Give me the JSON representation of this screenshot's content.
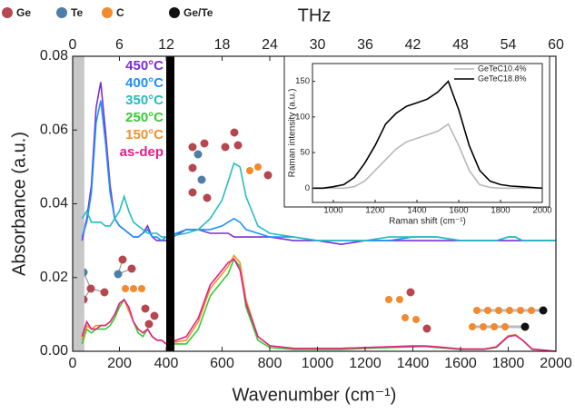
{
  "chart_data": [
    {
      "type": "line",
      "xlabel": "Wavenumber (cm⁻¹)",
      "ylabel": "Absorbance (a.u.)",
      "x2label": "THz",
      "x": [
        40,
        60,
        80,
        100,
        120,
        140,
        160,
        180,
        200,
        220,
        240,
        260,
        280,
        300,
        320,
        340,
        360,
        380,
        400,
        450,
        500,
        550,
        600,
        625,
        650,
        675,
        700,
        750,
        800,
        900,
        1000,
        1100,
        1200,
        1300,
        1400,
        1450,
        1500,
        1600,
        1700,
        1750,
        1800,
        1830,
        1860,
        1900,
        2000
      ],
      "series": [
        {
          "name": "450°C",
          "color": "#7b2fd6",
          "values": [
            0.03,
            0.036,
            0.045,
            0.066,
            0.073,
            0.06,
            0.045,
            0.036,
            0.034,
            0.033,
            0.032,
            0.031,
            0.031,
            0.032,
            0.034,
            0.031,
            0.03,
            0.03,
            0.03,
            0.033,
            0.033,
            0.032,
            0.032,
            0.032,
            0.031,
            0.031,
            0.031,
            0.031,
            0.031,
            0.03,
            0.03,
            0.029,
            0.03,
            0.03,
            0.03,
            0.03,
            0.03,
            0.03,
            0.03,
            0.03,
            0.03,
            0.03,
            0.03,
            0.03,
            0.03
          ]
        },
        {
          "name": "400°C",
          "color": "#1e90ff",
          "values": [
            0.031,
            0.035,
            0.043,
            0.062,
            0.068,
            0.057,
            0.043,
            0.036,
            0.034,
            0.033,
            0.032,
            0.031,
            0.031,
            0.032,
            0.033,
            0.031,
            0.031,
            0.03,
            0.031,
            0.033,
            0.033,
            0.033,
            0.034,
            0.035,
            0.036,
            0.035,
            0.033,
            0.032,
            0.031,
            0.031,
            0.03,
            0.03,
            0.03,
            0.03,
            0.031,
            0.031,
            0.031,
            0.03,
            0.03,
            0.03,
            0.031,
            0.031,
            0.03,
            0.03,
            0.03
          ]
        },
        {
          "name": "350°C",
          "color": "#26bcbc",
          "values": [
            0.036,
            0.038,
            0.035,
            0.035,
            0.035,
            0.034,
            0.034,
            0.036,
            0.038,
            0.042,
            0.038,
            0.035,
            0.034,
            0.033,
            0.032,
            0.032,
            0.032,
            0.031,
            0.031,
            0.032,
            0.033,
            0.036,
            0.041,
            0.046,
            0.051,
            0.05,
            0.042,
            0.034,
            0.032,
            0.031,
            0.03,
            0.03,
            0.03,
            0.031,
            0.031,
            0.031,
            0.031,
            0.03,
            0.03,
            0.03,
            0.031,
            0.031,
            0.03,
            0.03,
            0.03
          ]
        },
        {
          "name": "250°C",
          "color": "#33cc33",
          "values": [
            0.002,
            0.006,
            0.005,
            0.006,
            0.006,
            0.006,
            0.007,
            0.009,
            0.012,
            0.014,
            0.011,
            0.008,
            0.005,
            0.004,
            0.006,
            0.004,
            0.003,
            0.003,
            0.002,
            0.002,
            0.006,
            0.015,
            0.019,
            0.021,
            0.025,
            0.023,
            0.012,
            0.003,
            0.001,
            0.0005,
            0.0005,
            0.0005,
            0.0008,
            0.001,
            0.0012,
            0.0013,
            0.001,
            0.0005,
            0.0005,
            0.001,
            0.004,
            0.0045,
            0.003,
            0.0005,
            0
          ]
        },
        {
          "name": "150°C",
          "color": "#f5902a",
          "values": [
            0.003,
            0.007,
            0.006,
            0.007,
            0.007,
            0.007,
            0.008,
            0.01,
            0.013,
            0.014,
            0.011,
            0.008,
            0.006,
            0.005,
            0.006,
            0.004,
            0.003,
            0.003,
            0.002,
            0.003,
            0.008,
            0.017,
            0.021,
            0.023,
            0.026,
            0.024,
            0.014,
            0.004,
            0.0015,
            0.0008,
            0.0008,
            0.0008,
            0.001,
            0.0012,
            0.0015,
            0.0015,
            0.0012,
            0.0006,
            0.0006,
            0.0012,
            0.0042,
            0.0045,
            0.003,
            0.0006,
            0
          ]
        },
        {
          "name": "as-dep",
          "color": "#e0218a",
          "values": [
            0.004,
            0.008,
            0.006,
            0.006,
            0.007,
            0.007,
            0.008,
            0.01,
            0.013,
            0.014,
            0.012,
            0.008,
            0.006,
            0.005,
            0.006,
            0.004,
            0.003,
            0.003,
            0.002,
            0.004,
            0.009,
            0.018,
            0.022,
            0.024,
            0.025,
            0.022,
            0.013,
            0.004,
            0.0015,
            0.0008,
            0.0008,
            0.0008,
            0.001,
            0.0012,
            0.0014,
            0.0014,
            0.0012,
            0.0006,
            0.0006,
            0.0012,
            0.004,
            0.0043,
            0.003,
            0.0006,
            0
          ]
        }
      ],
      "x_segments": [
        [
          0,
          400
        ],
        [
          400,
          2000
        ]
      ],
      "x2_segments": [
        [
          0,
          12
        ],
        [
          12,
          60
        ]
      ],
      "xticks": [
        0,
        200,
        400,
        600,
        800,
        1000,
        1200,
        1400,
        1600,
        1800,
        2000
      ],
      "x2ticks": [
        0,
        6,
        12,
        18,
        24,
        30,
        36,
        42,
        48,
        54,
        60
      ],
      "ylim": [
        0,
        0.08
      ],
      "yticks": [
        {
          "value": 0,
          "label": "0.00"
        },
        0.02,
        0.04,
        0.06,
        0.08
      ],
      "shaded_region": [
        0,
        50
      ],
      "legend": "top-left",
      "atom_legend": [
        {
          "name": "Ge",
          "color": "#b5474f"
        },
        {
          "name": "Te",
          "color": "#4d7ea8"
        },
        {
          "name": "C",
          "color": "#f28a30"
        },
        {
          "name": "Ge/Te",
          "color": "#111111"
        }
      ]
    },
    {
      "type": "line",
      "xlabel": "Raman shift (cm⁻¹)",
      "ylabel": "Raman intensity (a.u.)",
      "x": [
        900,
        950,
        1000,
        1050,
        1100,
        1150,
        1200,
        1250,
        1300,
        1350,
        1400,
        1450,
        1500,
        1550,
        1600,
        1650,
        1700,
        1750,
        1800,
        1850,
        1900,
        1950,
        2000
      ],
      "series": [
        {
          "name": "GeTeC10.4%",
          "color": "#b8b8b8",
          "values": [
            0,
            0,
            0,
            0,
            2,
            10,
            25,
            40,
            55,
            65,
            70,
            75,
            80,
            90,
            60,
            25,
            5,
            1,
            0,
            0,
            0,
            0,
            0
          ]
        },
        {
          "name": "GeTeC18.8%",
          "color": "#000000",
          "values": [
            0,
            0,
            2,
            5,
            15,
            35,
            60,
            90,
            105,
            115,
            120,
            125,
            135,
            150,
            110,
            60,
            25,
            10,
            5,
            3,
            2,
            1,
            0
          ]
        }
      ],
      "xlim": [
        900,
        2000
      ],
      "xticks": [
        1000,
        1200,
        1400,
        1600,
        1800,
        2000
      ],
      "ylim": [
        -20,
        175
      ],
      "yticks": [
        0,
        50,
        100,
        150
      ],
      "legend": "top-right"
    }
  ]
}
